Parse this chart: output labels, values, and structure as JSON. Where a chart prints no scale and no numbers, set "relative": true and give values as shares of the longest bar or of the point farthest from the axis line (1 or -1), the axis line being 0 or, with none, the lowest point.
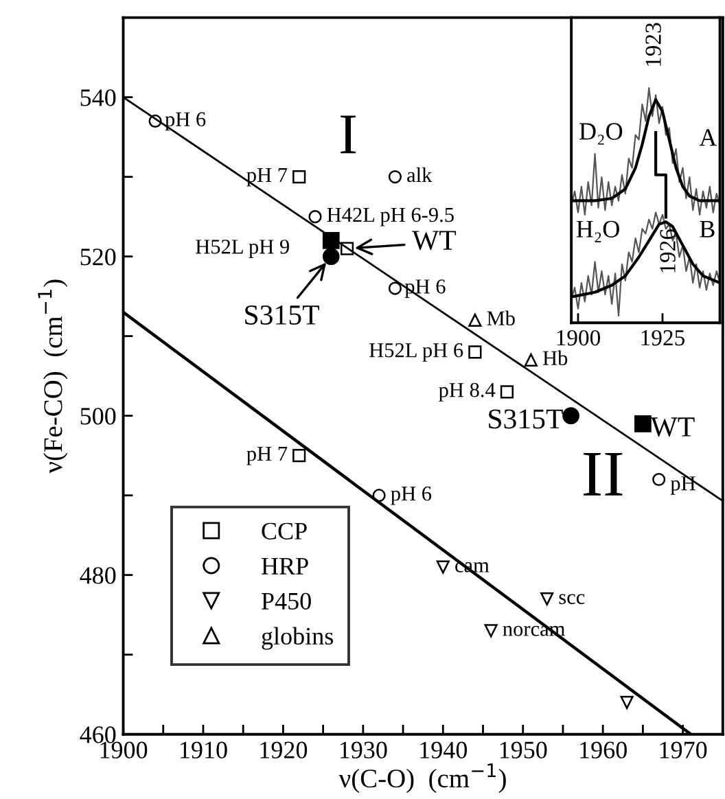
{
  "chart_data": [
    {
      "type": "scatter",
      "xlabel": "ν(C-O)  (cm$^{−1}$)",
      "ylabel": "ν(Fe-CO)  (cm$^{−1}$)",
      "xlim": [
        1900,
        1975
      ],
      "ylim": [
        460,
        550
      ],
      "xticks": [
        1900,
        {
          "value": 1905,
          "label": null
        },
        1910,
        {
          "value": 1915,
          "label": null
        },
        1920,
        {
          "value": 1925,
          "label": null
        },
        1930,
        {
          "value": 1935,
          "label": null
        },
        1940,
        {
          "value": 1945,
          "label": null
        },
        1950,
        {
          "value": 1955,
          "label": null
        },
        1960,
        {
          "value": 1965,
          "label": null
        },
        1970
      ],
      "yticks": [
        460,
        {
          "value": 470,
          "label": null
        },
        480,
        {
          "value": 490,
          "label": null
        },
        500,
        {
          "value": 510,
          "label": null
        },
        520,
        {
          "value": 530,
          "label": null
        },
        540
      ],
      "grid": false,
      "legend": "bottom left",
      "series": [
        {
          "name": "CCP",
          "color": "#000000",
          "marker": "square",
          "x": [
            1922,
            1928,
            1944,
            1948,
            1922
          ],
          "values": [
            530,
            521,
            508,
            503,
            495
          ]
        },
        {
          "name": "HRP",
          "color": "#000000",
          "marker": "circle",
          "x": [
            1904,
            1934,
            1924,
            1934,
            1967,
            1932
          ],
          "values": [
            537,
            530,
            525,
            516,
            492,
            490
          ]
        },
        {
          "name": "P450",
          "color": "#000000",
          "marker": "triangle_down",
          "x": [
            1940,
            1953,
            1946,
            1963
          ],
          "values": [
            481,
            477,
            473,
            464
          ]
        },
        {
          "name": "globins",
          "color": "#000000",
          "marker": "triangle",
          "x": [
            1944,
            1951
          ],
          "values": [
            512,
            507
          ]
        },
        {
          "color": "#000000",
          "marker": "square",
          "x": [
            1926,
            1965
          ],
          "values": [
            522,
            499
          ]
        },
        {
          "color": "#000000",
          "marker": "circle",
          "x": [
            1926,
            1956
          ],
          "values": [
            520,
            500
          ]
        },
        {
          "type": "line",
          "color": "#000000",
          "marker": "none",
          "x": [
            1900,
            1975
          ],
          "values": [
            540,
            489.3
          ]
        },
        {
          "type": "line",
          "color": "#000000",
          "marker": "none",
          "x": [
            1900,
            1971
          ],
          "values": [
            513,
            460
          ]
        }
      ],
      "annotations": [
        {
          "text": "pH 6",
          "x": 1904,
          "y": 537
        },
        {
          "text": "pH 7",
          "x": 1922,
          "y": 530
        },
        {
          "text": "alk",
          "x": 1934,
          "y": 530
        },
        {
          "text": "H42L pH 6-9.5",
          "x": 1924,
          "y": 525
        },
        {
          "text": "H52L pH 9",
          "x": 1928,
          "y": 521
        },
        {
          "text": "WT",
          "x": 1928,
          "y": 521
        },
        {
          "text": "S315T",
          "x": 1926,
          "y": 520
        },
        {
          "text": "pH 6",
          "x": 1934,
          "y": 516
        },
        {
          "text": "Mb",
          "x": 1944,
          "y": 512
        },
        {
          "text": "H52L pH 6",
          "x": 1944,
          "y": 508
        },
        {
          "text": "Hb",
          "x": 1951,
          "y": 507
        },
        {
          "text": "pH 8.4",
          "x": 1948,
          "y": 503
        },
        {
          "text": "S315T",
          "x": 1956,
          "y": 500
        },
        {
          "text": "WT",
          "x": 1965,
          "y": 499
        },
        {
          "text": "pH",
          "x": 1967,
          "y": 492
        },
        {
          "text": "pH 7",
          "x": 1922,
          "y": 495
        },
        {
          "text": "pH 6",
          "x": 1932,
          "y": 490
        },
        {
          "text": "cam",
          "x": 1940,
          "y": 481
        },
        {
          "text": "scc",
          "x": 1953,
          "y": 477
        },
        {
          "text": "norcam",
          "x": 1946,
          "y": 473
        },
        "I",
        "II"
      ]
    },
    {
      "type": "line",
      "relative": true,
      "xlim": [
        1898,
        1942
      ],
      "xticks": [
        1900,
        1925
      ],
      "tick_labels": "x",
      "grid": false,
      "series": [
        {
          "color": "#555555",
          "x": [
            1898,
            1899,
            1900,
            1901,
            1902,
            1903,
            1904,
            1905,
            1906,
            1907,
            1908,
            1909,
            1910,
            1911,
            1912,
            1913,
            1914,
            1915,
            1916,
            1917,
            1918,
            1919,
            1920,
            1921,
            1922,
            1923,
            1924,
            1925,
            1926,
            1927,
            1928,
            1929,
            1930,
            1931,
            1932,
            1933,
            1934,
            1935,
            1936,
            1937,
            1938,
            1939,
            1940,
            1941,
            1942
          ],
          "values": [
            0.5,
            0.56,
            0.47,
            0.58,
            0.46,
            0.6,
            0.5,
            0.72,
            0.49,
            0.62,
            0.48,
            0.6,
            0.5,
            0.58,
            0.52,
            0.63,
            0.55,
            0.7,
            0.66,
            0.8,
            0.78,
            0.93,
            0.86,
            1.0,
            0.88,
            0.97,
            0.85,
            0.92,
            0.8,
            0.83,
            0.68,
            0.74,
            0.6,
            0.66,
            0.53,
            0.62,
            0.48,
            0.57,
            0.46,
            0.56,
            0.49,
            0.58,
            0.47,
            0.55,
            0.5
          ]
        },
        {
          "color": "#000000",
          "x": [
            1898,
            1905,
            1910,
            1914,
            1917,
            1919,
            1921,
            1923,
            1925,
            1927,
            1929,
            1931,
            1933,
            1936,
            1942
          ],
          "values": [
            0.52,
            0.52,
            0.53,
            0.57,
            0.66,
            0.76,
            0.88,
            0.95,
            0.9,
            0.78,
            0.66,
            0.58,
            0.54,
            0.52,
            0.52
          ]
        },
        {
          "color": "#555555",
          "x": [
            1898,
            1899,
            1900,
            1901,
            1902,
            1903,
            1904,
            1905,
            1906,
            1907,
            1908,
            1909,
            1910,
            1911,
            1912,
            1913,
            1914,
            1915,
            1916,
            1917,
            1918,
            1919,
            1920,
            1921,
            1922,
            1923,
            1924,
            1925,
            1926,
            1927,
            1928,
            1929,
            1930,
            1931,
            1932,
            1933,
            1934,
            1935,
            1936,
            1937,
            1938,
            1939,
            1940,
            1941,
            1942
          ],
          "values": [
            0.1,
            0.15,
            0.06,
            0.17,
            0.09,
            0.2,
            0.12,
            0.26,
            0.13,
            0.22,
            0.12,
            0.2,
            0.08,
            0.21,
            0.03,
            0.25,
            0.18,
            0.3,
            0.26,
            0.36,
            0.3,
            0.4,
            0.38,
            0.44,
            0.4,
            0.47,
            0.42,
            0.46,
            0.4,
            0.42,
            0.35,
            0.38,
            0.28,
            0.33,
            0.22,
            0.28,
            0.17,
            0.25,
            0.15,
            0.22,
            0.14,
            0.21,
            0.16,
            0.22,
            0.17
          ]
        },
        {
          "color": "#000000",
          "x": [
            1898,
            1905,
            1910,
            1914,
            1918,
            1921,
            1924,
            1926,
            1928,
            1931,
            1934,
            1937,
            1942
          ],
          "values": [
            0.11,
            0.13,
            0.16,
            0.2,
            0.28,
            0.35,
            0.42,
            0.43,
            0.41,
            0.33,
            0.25,
            0.2,
            0.17
          ]
        },
        {
          "color": "#000000",
          "x": [
            1923,
            1923,
            1926,
            1926
          ],
          "values": [
            0.81,
            0.63,
            0.63,
            0.45
          ]
        }
      ],
      "annotations": [
        "D₂O",
        "A",
        "H₂O",
        "B",
        "1923",
        {
          "text": "1926",
          "x": 1926,
          "y": 0.45
        }
      ]
    }
  ]
}
